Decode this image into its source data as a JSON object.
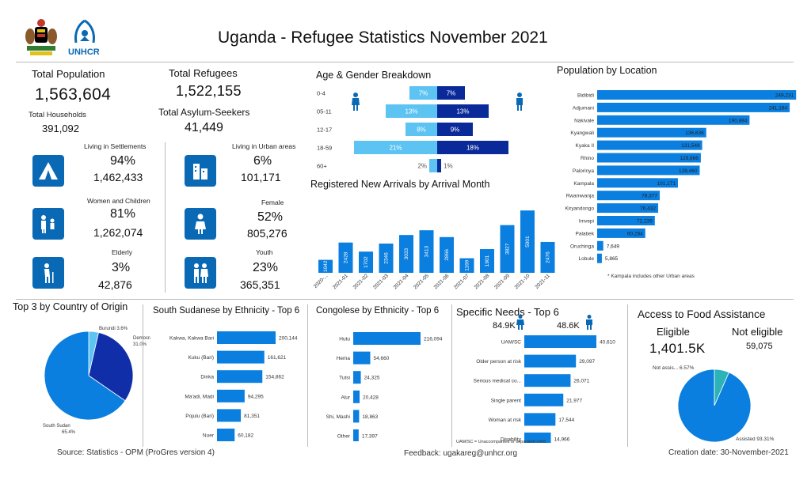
{
  "header": {
    "title": "Uganda  - Refugee Statistics November 2021",
    "logo_unhcr_text": "UNHCR"
  },
  "colors": {
    "primary": "#0a7fe0",
    "dark": "#0a69b4",
    "navy": "#0b2a9a",
    "light": "#5cc3f3",
    "teal": "#2bb3b8"
  },
  "kpis": {
    "total_population_label": "Total Population",
    "total_population": "1,563,604",
    "total_households_label": "Total Households",
    "total_households": "391,092",
    "total_refugees_label": "Total Refugees",
    "total_refugees": "1,522,155",
    "total_asylum_label": "Total Asylum-Seekers",
    "total_asylum": "41,449"
  },
  "stats": {
    "settlements": {
      "label": "Living in Settlements",
      "pct": "94%",
      "value": "1,462,433",
      "icon": "tent-icon"
    },
    "urban": {
      "label": "Living in Urban areas",
      "pct": "6%",
      "value": "101,171",
      "icon": "building-icon"
    },
    "women_children": {
      "label": "Women and Children",
      "pct": "81%",
      "value": "1,262,074",
      "icon": "family-icon"
    },
    "female": {
      "label": "Female",
      "pct": "52%",
      "value": "805,276",
      "icon": "female-icon"
    },
    "elderly": {
      "label": "Elderly",
      "pct": "3%",
      "value": "42,876",
      "icon": "elderly-icon"
    },
    "youth": {
      "label": "Youth",
      "pct": "23%",
      "value": "365,351",
      "icon": "youth-icon"
    }
  },
  "footer": {
    "source": "Source: Statistics - OPM (ProGres version 4)",
    "feedback": "Feedback: ugakareg@unhcr.org",
    "creation": "Creation date: 30-November-2021"
  },
  "chart_data": [
    {
      "type": "bar",
      "title": "Age & Gender Breakdown",
      "categories": [
        "0-4",
        "05-11",
        "12-17",
        "18-59",
        "60+"
      ],
      "series": [
        {
          "name": "Female",
          "values": [
            7,
            13,
            8,
            21,
            2
          ],
          "labels": [
            "7%",
            "13%",
            "8%",
            "21%",
            "2%"
          ]
        },
        {
          "name": "Male",
          "values": [
            7,
            13,
            9,
            18,
            1
          ],
          "labels": [
            "7%",
            "13%",
            "9%",
            "18%",
            "1%"
          ]
        }
      ]
    },
    {
      "type": "bar",
      "title": "Registered New Arrivals by Arrival Month",
      "categories": [
        "2020-...",
        "2021-01",
        "2021-02",
        "2021-03",
        "2021-04",
        "2021-05",
        "2021-06",
        "2021-07",
        "2021-08",
        "2021-09",
        "2021-10",
        "2021-11"
      ],
      "values": [
        1042,
        2428,
        1702,
        2346,
        3033,
        3413,
        2866,
        1169,
        1901,
        3827,
        5001,
        2476
      ],
      "labels": [
        "1042",
        "2428",
        "1702",
        "2346",
        "3033",
        "3413",
        "2866",
        "1169",
        "1901",
        "3827",
        "5001",
        "2476"
      ]
    },
    {
      "type": "bar",
      "title": "Population by Location",
      "categories": [
        "Bidibidi",
        "Adjumani",
        "Nakivale",
        "Kyangwali",
        "Kyaka II",
        "Rhino",
        "Palorinya",
        "Kampala",
        "Rwamwanja",
        "Kiryandongo",
        "Imvepi",
        "Palabek",
        "Oruchinga",
        "Lobule"
      ],
      "values": [
        249231,
        241164,
        190884,
        136636,
        131548,
        129866,
        128460,
        101171,
        78377,
        76432,
        72239,
        60284,
        7649,
        5865
      ],
      "labels": [
        "249,231",
        "241,164",
        "190,884",
        "136,636",
        "131,548",
        "129,866",
        "128,460",
        "101,171",
        "78,377",
        "76,432",
        "72,239",
        "60,284",
        "7,649",
        "5,865"
      ],
      "note": "* Kampala includes other Urban areas"
    },
    {
      "type": "pie",
      "title": "Top 3 by Country of Origin",
      "categories": [
        "South Sudan",
        "Democratic...",
        "Burundi"
      ],
      "values": [
        65.4,
        31.0,
        3.6
      ],
      "labels": [
        "South Sudan\n65.4%",
        "Democratic...\n31.0%",
        "Burundi 3.6%"
      ]
    },
    {
      "type": "bar",
      "title": "South Sudanese by Ethnicity - Top 6",
      "categories": [
        "Kakwa, Kakwa Bari",
        "Kuku (Bari)",
        "Dinka",
        "Ma'adi, Madi",
        "Pojulu (Bari)",
        "Nuer"
      ],
      "values": [
        200144,
        161621,
        154862,
        94295,
        81351,
        60182
      ],
      "labels": [
        "200,144",
        "161,621",
        "154,862",
        "94,295",
        "81,351",
        "60,182"
      ]
    },
    {
      "type": "bar",
      "title": "Congolese by Ethnicity - Top 6",
      "categories": [
        "Hutu",
        "Hema",
        "Tutsi",
        "Alur",
        "Shi, Mashi",
        "Other"
      ],
      "values": [
        216094,
        54660,
        24325,
        20428,
        18863,
        17397
      ],
      "labels": [
        "216,094",
        "54,660",
        "24,325",
        "20,428",
        "18,863",
        "17,397"
      ]
    },
    {
      "type": "bar",
      "title": "Specific Needs - Top 6",
      "totals": {
        "female": "84.9K",
        "male": "48.6K"
      },
      "categories": [
        "UAM/SC",
        "Older person at risk",
        "Serious medical co...",
        "Single parent",
        "Woman at risk",
        "Disability"
      ],
      "values": [
        40610,
        29097,
        26071,
        21977,
        17544,
        14966
      ],
      "labels": [
        "40,610",
        "29,097",
        "26,071",
        "21,977",
        "17,544",
        "14,966"
      ],
      "note": "UAM/SC = Unaccompanied or separated child"
    },
    {
      "type": "pie",
      "title": "Access to Food Assistance",
      "eligible_label": "Eligible",
      "eligible": "1,401.5K",
      "not_eligible_label": "Not eligible",
      "not_eligible": "59,075",
      "categories": [
        "Assisted",
        "Not assis..."
      ],
      "values": [
        93.31,
        6.57
      ],
      "labels": [
        "Assisted 93.31%",
        "Not assis... 6.57%"
      ]
    }
  ]
}
